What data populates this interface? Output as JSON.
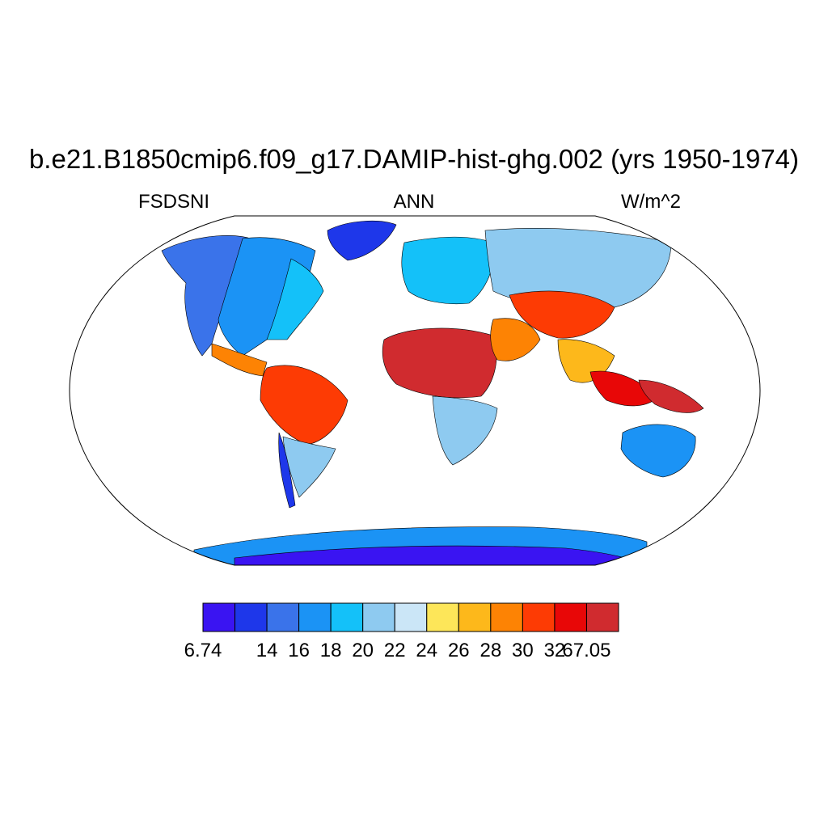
{
  "title": "b.e21.B1850cmip6.f09_g17.DAMIP-hist-ghg.002 (yrs 1950-1974)",
  "variable": "FSDSNI",
  "season": "ANN",
  "units": "W/m^2",
  "colorbar": {
    "colors": [
      "#3a14f2",
      "#1e37ea",
      "#3a73ea",
      "#1b93f5",
      "#14c1f9",
      "#8ecaf0",
      "#cbe6f7",
      "#fde659",
      "#fdb81b",
      "#fd8304",
      "#fd3b04",
      "#e80707",
      "#d02b2f"
    ],
    "labels": [
      "6.74",
      "14",
      "16",
      "18",
      "20",
      "22",
      "24",
      "26",
      "28",
      "30",
      "32",
      "67.05"
    ]
  },
  "map_regions": [
    {
      "name": "north-america-west",
      "color": "#3a73ea"
    },
    {
      "name": "north-america-central",
      "color": "#1b93f5"
    },
    {
      "name": "north-america-east",
      "color": "#14c1f9"
    },
    {
      "name": "greenland",
      "color": "#1e37ea"
    },
    {
      "name": "central-america",
      "color": "#fd8304"
    },
    {
      "name": "amazon",
      "color": "#fd3b04"
    },
    {
      "name": "south-america-south",
      "color": "#8ecaf0"
    },
    {
      "name": "andes-patagonia",
      "color": "#1e37ea"
    },
    {
      "name": "europe",
      "color": "#14c1f9"
    },
    {
      "name": "siberia",
      "color": "#8ecaf0"
    },
    {
      "name": "sahara",
      "color": "#d02b2f"
    },
    {
      "name": "arabia",
      "color": "#fd8304"
    },
    {
      "name": "tibet-central-asia",
      "color": "#fd3b04"
    },
    {
      "name": "india",
      "color": "#fdb81b"
    },
    {
      "name": "southeast-asia",
      "color": "#e80707"
    },
    {
      "name": "maritime-continent",
      "color": "#d02b2f"
    },
    {
      "name": "southern-africa",
      "color": "#8ecaf0"
    },
    {
      "name": "australia",
      "color": "#1b93f5"
    },
    {
      "name": "antarctica",
      "color": "#1b93f5"
    },
    {
      "name": "antarctica-interior",
      "color": "#3a14f2"
    }
  ]
}
